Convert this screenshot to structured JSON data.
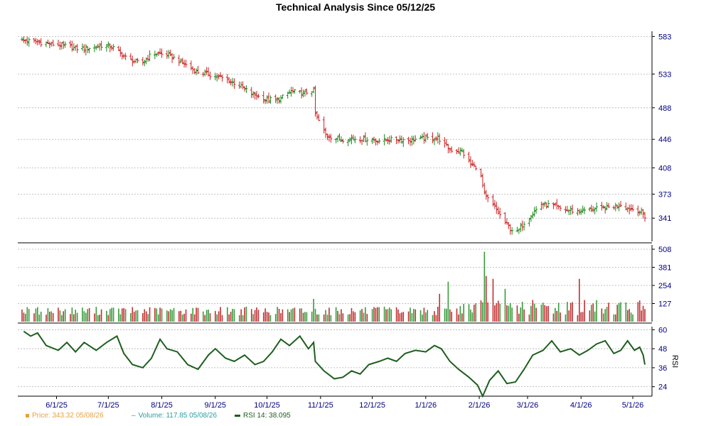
{
  "chart_data": [
    {
      "type": "ohlc",
      "panel": "price",
      "title": "Technical Analysis Since 05/12/25",
      "yticks": [
        "583",
        "533",
        "488",
        "446",
        "408",
        "373",
        "341"
      ],
      "ylim": [
        310,
        590
      ],
      "xticks": [
        "6/1/25",
        "7/1/25",
        "8/1/25",
        "9/1/25",
        "10/1/25",
        "11/1/25",
        "12/1/25",
        "1/1/26",
        "2/1/26",
        "3/1/26",
        "4/1/26",
        "5/1/26"
      ],
      "up_color": "#1a8a1a",
      "down_color": "#cc2222",
      "trend": [
        [
          "2025-05-12",
          578
        ],
        [
          "2025-05-20",
          576
        ],
        [
          "2025-05-28",
          573
        ],
        [
          "2025-06-05",
          571
        ],
        [
          "2025-06-13",
          567
        ],
        [
          "2025-06-21",
          568
        ],
        [
          "2025-06-29",
          572
        ],
        [
          "2025-07-05",
          567
        ],
        [
          "2025-07-12",
          553
        ],
        [
          "2025-07-20",
          547
        ],
        [
          "2025-07-27",
          561
        ],
        [
          "2025-08-05",
          558
        ],
        [
          "2025-08-13",
          548
        ],
        [
          "2025-08-21",
          536
        ],
        [
          "2025-08-29",
          532
        ],
        [
          "2025-09-06",
          527
        ],
        [
          "2025-09-14",
          519
        ],
        [
          "2025-09-22",
          507
        ],
        [
          "2025-09-30",
          499
        ],
        [
          "2025-10-08",
          499
        ],
        [
          "2025-10-15",
          510
        ],
        [
          "2025-10-22",
          507
        ],
        [
          "2025-10-28",
          512
        ],
        [
          "2025-10-29",
          480
        ],
        [
          "2025-11-04",
          452
        ],
        [
          "2025-11-12",
          446
        ],
        [
          "2025-11-20",
          447
        ],
        [
          "2025-11-28",
          446
        ],
        [
          "2025-12-06",
          444
        ],
        [
          "2025-12-14",
          446
        ],
        [
          "2025-12-22",
          445
        ],
        [
          "2025-12-30",
          447
        ],
        [
          "2026-01-08",
          448
        ],
        [
          "2026-01-15",
          432
        ],
        [
          "2026-01-22",
          430
        ],
        [
          "2026-01-27",
          412
        ],
        [
          "2026-02-01",
          408
        ],
        [
          "2026-02-04",
          372
        ],
        [
          "2026-02-10",
          355
        ],
        [
          "2026-02-15",
          338
        ],
        [
          "2026-02-19",
          327
        ],
        [
          "2026-02-23",
          322
        ],
        [
          "2026-02-27",
          335
        ],
        [
          "2026-03-03",
          345
        ],
        [
          "2026-03-09",
          360
        ],
        [
          "2026-03-15",
          358
        ],
        [
          "2026-03-22",
          352
        ],
        [
          "2026-03-29",
          350
        ],
        [
          "2026-04-05",
          352
        ],
        [
          "2026-04-12",
          354
        ],
        [
          "2026-04-19",
          356
        ],
        [
          "2026-04-24",
          359
        ],
        [
          "2026-04-28",
          354
        ],
        [
          "2026-05-03",
          352
        ],
        [
          "2026-05-06",
          349
        ],
        [
          "2026-05-08",
          343
        ]
      ]
    },
    {
      "type": "bar",
      "panel": "volume",
      "yticks": [
        "508",
        "381",
        "254",
        "127"
      ],
      "ylim": [
        0,
        508
      ],
      "spikes": [
        [
          "2025-10-28",
          160
        ],
        [
          "2026-01-09",
          195
        ],
        [
          "2026-01-14",
          280
        ],
        [
          "2026-02-04",
          490
        ],
        [
          "2026-02-05",
          320
        ],
        [
          "2026-02-09",
          300
        ],
        [
          "2026-02-16",
          230
        ],
        [
          "2026-03-31",
          300
        ]
      ]
    },
    {
      "type": "line",
      "panel": "rsi",
      "ylabel": "RSI",
      "yticks": [
        "60",
        "48",
        "36",
        "24"
      ],
      "ylim": [
        18,
        62
      ],
      "line_color": "#1e5e1e",
      "values": [
        [
          "2025-05-13",
          59
        ],
        [
          "2025-05-17",
          56
        ],
        [
          "2025-05-21",
          58
        ],
        [
          "2025-05-26",
          50
        ],
        [
          "2025-06-02",
          47
        ],
        [
          "2025-06-07",
          52
        ],
        [
          "2025-06-12",
          46
        ],
        [
          "2025-06-17",
          52
        ],
        [
          "2025-06-24",
          47
        ],
        [
          "2025-06-30",
          52
        ],
        [
          "2025-07-06",
          56
        ],
        [
          "2025-07-10",
          45
        ],
        [
          "2025-07-15",
          38
        ],
        [
          "2025-07-21",
          36
        ],
        [
          "2025-07-26",
          42
        ],
        [
          "2025-07-31",
          54
        ],
        [
          "2025-08-04",
          48
        ],
        [
          "2025-08-10",
          46
        ],
        [
          "2025-08-16",
          38
        ],
        [
          "2025-08-22",
          35
        ],
        [
          "2025-08-28",
          44
        ],
        [
          "2025-09-01",
          48
        ],
        [
          "2025-09-07",
          42
        ],
        [
          "2025-09-12",
          40
        ],
        [
          "2025-09-18",
          44
        ],
        [
          "2025-09-24",
          38
        ],
        [
          "2025-09-29",
          40
        ],
        [
          "2025-10-04",
          46
        ],
        [
          "2025-10-09",
          54
        ],
        [
          "2025-10-14",
          50
        ],
        [
          "2025-10-20",
          56
        ],
        [
          "2025-10-25",
          48
        ],
        [
          "2025-10-28",
          52
        ],
        [
          "2025-10-29",
          40
        ],
        [
          "2025-11-03",
          34
        ],
        [
          "2025-11-09",
          29
        ],
        [
          "2025-11-14",
          30
        ],
        [
          "2025-11-19",
          34
        ],
        [
          "2025-11-24",
          32
        ],
        [
          "2025-11-29",
          38
        ],
        [
          "2025-12-05",
          40
        ],
        [
          "2025-12-10",
          42
        ],
        [
          "2025-12-15",
          40
        ],
        [
          "2025-12-20",
          45
        ],
        [
          "2025-12-26",
          47
        ],
        [
          "2026-01-01",
          46
        ],
        [
          "2026-01-06",
          50
        ],
        [
          "2026-01-10",
          48
        ],
        [
          "2026-01-15",
          40
        ],
        [
          "2026-01-20",
          35
        ],
        [
          "2026-01-26",
          30
        ],
        [
          "2026-01-31",
          25
        ],
        [
          "2026-02-03",
          18
        ],
        [
          "2026-02-07",
          28
        ],
        [
          "2026-02-12",
          34
        ],
        [
          "2026-02-17",
          26
        ],
        [
          "2026-02-22",
          27
        ],
        [
          "2026-02-27",
          35
        ],
        [
          "2026-03-04",
          44
        ],
        [
          "2026-03-10",
          47
        ],
        [
          "2026-03-15",
          53
        ],
        [
          "2026-03-20",
          46
        ],
        [
          "2026-03-26",
          48
        ],
        [
          "2026-03-31",
          44
        ],
        [
          "2026-04-05",
          47
        ],
        [
          "2026-04-10",
          51
        ],
        [
          "2026-04-15",
          53
        ],
        [
          "2026-04-20",
          45
        ],
        [
          "2026-04-24",
          47
        ],
        [
          "2026-04-28",
          53
        ],
        [
          "2026-05-02",
          47
        ],
        [
          "2026-05-05",
          49
        ],
        [
          "2026-05-07",
          44
        ],
        [
          "2026-05-08",
          38
        ]
      ]
    }
  ],
  "legend": {
    "price": "Price: 343.32  05/08/26",
    "volume": "Volume: 117.85  05/08/26",
    "rsi": "RSI 14: 38.095"
  },
  "colors": {
    "price_legend": "#e8a040",
    "volume_legend": "#2aa0a0",
    "rsi_legend": "#1e5e1e",
    "axis_text": "#000080"
  }
}
